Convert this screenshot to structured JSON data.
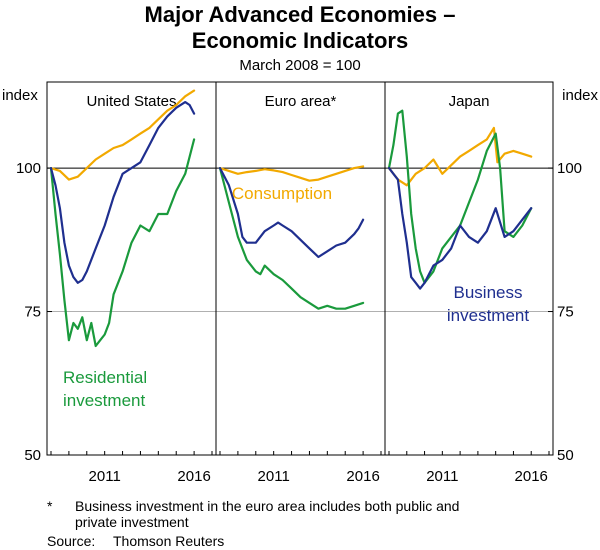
{
  "title_line1": "Major Advanced Economies –",
  "title_line2": "Economic Indicators",
  "subtitle": "March 2008 = 100",
  "footnote": {
    "marker": "*",
    "line1": "Business investment in the euro area includes both public and",
    "line2": "private investment",
    "source_label": "Source:",
    "source_text": "Thomson Reuters"
  },
  "colors": {
    "consumption": "#f2a900",
    "business": "#1f2f8f",
    "residential": "#1a9a3c",
    "axis": "#000000",
    "grid": "#b0b0b0"
  },
  "chart_data": {
    "type": "line",
    "y_axis_label_left": "index",
    "y_axis_label_right": "index",
    "ylim": [
      50,
      115
    ],
    "yticks": [
      50,
      75,
      100
    ],
    "xlim": [
      2008.0,
      2017.0
    ],
    "xticks": [
      2011,
      2016
    ],
    "panels": [
      {
        "name": "United States",
        "series": [
          {
            "key": "consumption",
            "name": "Consumption",
            "x": [
              2008.0,
              2008.5,
              2009.0,
              2009.5,
              2010.0,
              2010.5,
              2011.0,
              2011.5,
              2012.0,
              2012.5,
              2013.0,
              2013.5,
              2014.0,
              2014.5,
              2015.0,
              2015.5,
              2016.0
            ],
            "values": [
              100,
              99.5,
              98,
              98.5,
              100,
              101.5,
              102.5,
              103.5,
              104,
              105,
              106,
              107,
              108.5,
              110,
              111,
              112.5,
              113.5
            ]
          },
          {
            "key": "business",
            "name": "Business investment",
            "x": [
              2008.0,
              2008.25,
              2008.5,
              2008.75,
              2009.0,
              2009.25,
              2009.5,
              2009.75,
              2010.0,
              2010.5,
              2011.0,
              2011.5,
              2012.0,
              2012.5,
              2013.0,
              2013.5,
              2014.0,
              2014.5,
              2015.0,
              2015.5,
              2015.75,
              2016.0
            ],
            "values": [
              100,
              97,
              93,
              87,
              83,
              81,
              80,
              80.5,
              82,
              86,
              90,
              95,
              99,
              100,
              101,
              104,
              107,
              109,
              110.5,
              111.5,
              111,
              109.5
            ]
          },
          {
            "key": "residential",
            "name": "Residential investment",
            "x": [
              2008.0,
              2008.25,
              2008.5,
              2008.75,
              2009.0,
              2009.25,
              2009.5,
              2009.75,
              2010.0,
              2010.25,
              2010.5,
              2010.75,
              2011.0,
              2011.25,
              2011.5,
              2012.0,
              2012.5,
              2013.0,
              2013.5,
              2014.0,
              2014.5,
              2015.0,
              2015.5,
              2016.0
            ],
            "values": [
              100,
              92,
              85,
              77,
              70,
              73,
              72,
              74,
              70,
              73,
              69,
              70,
              71,
              73,
              78,
              82,
              87,
              90,
              89,
              92,
              92,
              96,
              99,
              105
            ]
          }
        ]
      },
      {
        "name": "Euro area*",
        "series": [
          {
            "key": "consumption",
            "name": "Consumption",
            "x": [
              2008.0,
              2008.5,
              2009.0,
              2009.5,
              2010.0,
              2010.5,
              2011.0,
              2011.5,
              2012.0,
              2012.5,
              2013.0,
              2013.5,
              2014.0,
              2014.5,
              2015.0,
              2015.5,
              2016.0
            ],
            "values": [
              100,
              99.5,
              99,
              99.3,
              99.5,
              99.8,
              99.6,
              99.3,
              98.8,
              98.3,
              97.8,
              98,
              98.5,
              99,
              99.5,
              100,
              100.3
            ]
          },
          {
            "key": "business",
            "name": "Business investment",
            "x": [
              2008.0,
              2008.5,
              2009.0,
              2009.25,
              2009.5,
              2010.0,
              2010.5,
              2011.0,
              2011.25,
              2011.5,
              2012.0,
              2012.5,
              2013.0,
              2013.5,
              2014.0,
              2014.5,
              2015.0,
              2015.5,
              2015.75,
              2016.0
            ],
            "values": [
              100,
              97,
              92,
              88,
              87,
              87,
              89,
              90,
              90.5,
              90,
              89,
              87.5,
              86,
              84.5,
              85.5,
              86.5,
              87,
              88.5,
              89.5,
              91
            ]
          },
          {
            "key": "residential",
            "name": "Residential investment",
            "x": [
              2008.0,
              2008.5,
              2009.0,
              2009.5,
              2010.0,
              2010.25,
              2010.5,
              2011.0,
              2011.5,
              2012.0,
              2012.5,
              2013.0,
              2013.5,
              2014.0,
              2014.5,
              2015.0,
              2015.5,
              2016.0
            ],
            "values": [
              100,
              94,
              88,
              84,
              82,
              81.5,
              83,
              81.5,
              80.5,
              79,
              77.5,
              76.5,
              75.5,
              76,
              75.5,
              75.5,
              76,
              76.5
            ]
          }
        ]
      },
      {
        "name": "Japan",
        "series": [
          {
            "key": "consumption",
            "name": "Consumption",
            "x": [
              2008.0,
              2008.5,
              2009.0,
              2009.5,
              2010.0,
              2010.5,
              2011.0,
              2011.5,
              2012.0,
              2012.5,
              2013.0,
              2013.5,
              2013.9,
              2014.1,
              2014.5,
              2015.0,
              2015.5,
              2016.0
            ],
            "values": [
              100,
              98,
              97,
              99,
              100,
              101.5,
              99,
              100.5,
              102,
              103,
              104,
              105,
              107,
              101,
              102.5,
              103,
              102.5,
              102
            ]
          },
          {
            "key": "business",
            "name": "Business investment",
            "x": [
              2008.0,
              2008.25,
              2008.5,
              2008.75,
              2009.0,
              2009.25,
              2009.5,
              2009.75,
              2010.0,
              2010.5,
              2011.0,
              2011.5,
              2012.0,
              2012.5,
              2013.0,
              2013.5,
              2014.0,
              2014.5,
              2015.0,
              2015.5,
              2016.0
            ],
            "values": [
              100,
              99,
              98,
              92,
              87,
              81,
              80,
              79,
              80,
              83,
              84,
              86,
              90,
              88,
              87,
              89,
              93,
              88,
              89,
              91,
              93
            ]
          },
          {
            "key": "residential",
            "name": "Residential investment",
            "x": [
              2008.0,
              2008.25,
              2008.5,
              2008.75,
              2009.0,
              2009.25,
              2009.5,
              2009.75,
              2010.0,
              2010.5,
              2011.0,
              2011.5,
              2012.0,
              2012.5,
              2013.0,
              2013.5,
              2014.0,
              2014.25,
              2014.5,
              2015.0,
              2015.5,
              2016.0
            ],
            "values": [
              100,
              104,
              109.5,
              110,
              102,
              92,
              86,
              82,
              80,
              82,
              86,
              88,
              90,
              94,
              98,
              103,
              106,
              100,
              89,
              88,
              90,
              93
            ]
          }
        ]
      }
    ],
    "annotations": [
      {
        "key": "consumption",
        "text": "Consumption"
      },
      {
        "key": "residential",
        "line1": "Residential",
        "line2": "investment"
      },
      {
        "key": "business",
        "line1": "Business",
        "line2": "investment"
      }
    ]
  }
}
